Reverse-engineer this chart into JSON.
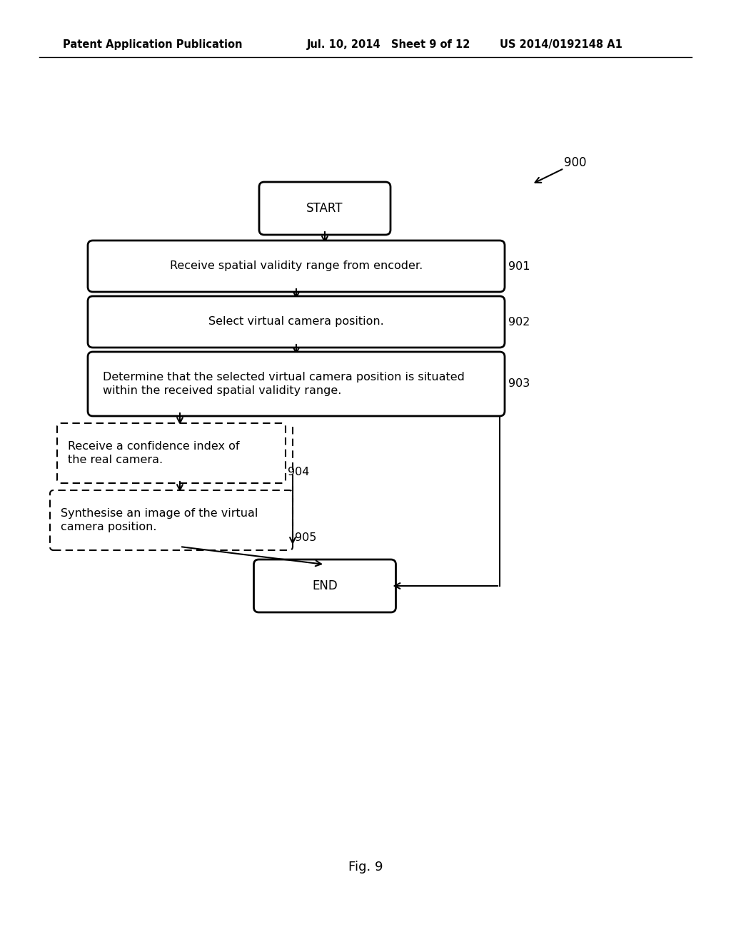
{
  "bg_color": "#ffffff",
  "header_left": "Patent Application Publication",
  "header_mid": "Jul. 10, 2014   Sheet 9 of 12",
  "header_right": "US 2014/0192148 A1",
  "fig_label": "Fig. 9",
  "diagram_label": "900",
  "font_size_header": 10.5,
  "font_size_node": 11.5,
  "font_size_label": 12
}
